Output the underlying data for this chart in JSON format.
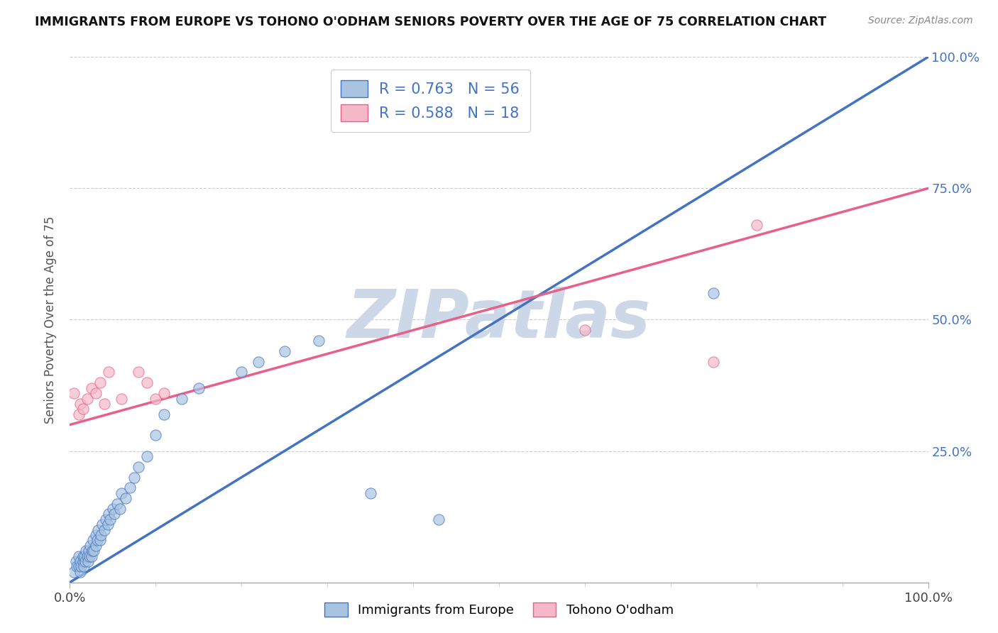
{
  "title": "IMMIGRANTS FROM EUROPE VS TOHONO O'ODHAM SENIORS POVERTY OVER THE AGE OF 75 CORRELATION CHART",
  "source": "Source: ZipAtlas.com",
  "ylabel": "Seniors Poverty Over the Age of 75",
  "xlim": [
    0,
    1.0
  ],
  "ylim": [
    0,
    1.0
  ],
  "blue_R": 0.763,
  "blue_N": 56,
  "pink_R": 0.588,
  "pink_N": 18,
  "blue_color": "#a8c4e0",
  "pink_color": "#f4b8c8",
  "blue_line_color": "#4472c4",
  "pink_line_color": "#e8608a",
  "legend_text_color": "#4472c4",
  "watermark": "ZIPatlas",
  "watermark_color": "#ccd8e8",
  "blue_scatter": [
    [
      0.005,
      0.02
    ],
    [
      0.007,
      0.04
    ],
    [
      0.008,
      0.03
    ],
    [
      0.01,
      0.03
    ],
    [
      0.01,
      0.05
    ],
    [
      0.012,
      0.02
    ],
    [
      0.012,
      0.04
    ],
    [
      0.013,
      0.03
    ],
    [
      0.015,
      0.04
    ],
    [
      0.015,
      0.05
    ],
    [
      0.016,
      0.03
    ],
    [
      0.017,
      0.05
    ],
    [
      0.018,
      0.04
    ],
    [
      0.019,
      0.06
    ],
    [
      0.02,
      0.05
    ],
    [
      0.021,
      0.04
    ],
    [
      0.022,
      0.06
    ],
    [
      0.023,
      0.05
    ],
    [
      0.024,
      0.07
    ],
    [
      0.025,
      0.05
    ],
    [
      0.026,
      0.06
    ],
    [
      0.027,
      0.08
    ],
    [
      0.028,
      0.06
    ],
    [
      0.03,
      0.07
    ],
    [
      0.03,
      0.09
    ],
    [
      0.032,
      0.08
    ],
    [
      0.033,
      0.1
    ],
    [
      0.035,
      0.08
    ],
    [
      0.036,
      0.09
    ],
    [
      0.038,
      0.11
    ],
    [
      0.04,
      0.1
    ],
    [
      0.042,
      0.12
    ],
    [
      0.044,
      0.11
    ],
    [
      0.045,
      0.13
    ],
    [
      0.047,
      0.12
    ],
    [
      0.05,
      0.14
    ],
    [
      0.052,
      0.13
    ],
    [
      0.055,
      0.15
    ],
    [
      0.058,
      0.14
    ],
    [
      0.06,
      0.17
    ],
    [
      0.065,
      0.16
    ],
    [
      0.07,
      0.18
    ],
    [
      0.075,
      0.2
    ],
    [
      0.08,
      0.22
    ],
    [
      0.09,
      0.24
    ],
    [
      0.1,
      0.28
    ],
    [
      0.11,
      0.32
    ],
    [
      0.13,
      0.35
    ],
    [
      0.15,
      0.37
    ],
    [
      0.2,
      0.4
    ],
    [
      0.22,
      0.42
    ],
    [
      0.25,
      0.44
    ],
    [
      0.29,
      0.46
    ],
    [
      0.35,
      0.17
    ],
    [
      0.43,
      0.12
    ],
    [
      0.75,
      0.55
    ]
  ],
  "pink_scatter": [
    [
      0.005,
      0.36
    ],
    [
      0.01,
      0.32
    ],
    [
      0.012,
      0.34
    ],
    [
      0.015,
      0.33
    ],
    [
      0.02,
      0.35
    ],
    [
      0.025,
      0.37
    ],
    [
      0.03,
      0.36
    ],
    [
      0.035,
      0.38
    ],
    [
      0.04,
      0.34
    ],
    [
      0.045,
      0.4
    ],
    [
      0.06,
      0.35
    ],
    [
      0.08,
      0.4
    ],
    [
      0.09,
      0.38
    ],
    [
      0.1,
      0.35
    ],
    [
      0.11,
      0.36
    ],
    [
      0.6,
      0.48
    ],
    [
      0.75,
      0.42
    ],
    [
      0.8,
      0.68
    ]
  ],
  "blue_line": [
    0.0,
    0.0,
    1.0,
    1.0
  ],
  "pink_line": [
    0.0,
    0.3,
    1.0,
    0.75
  ]
}
